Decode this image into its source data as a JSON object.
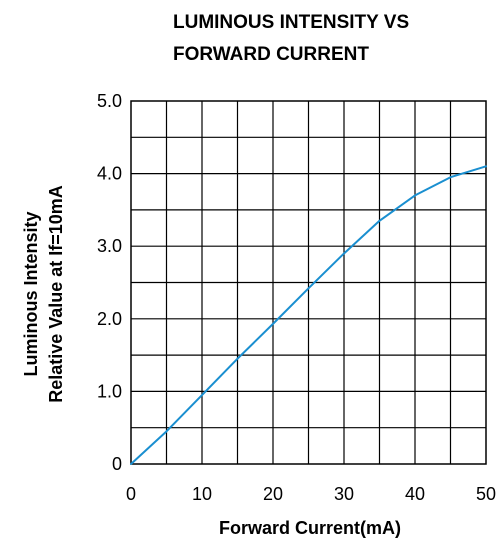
{
  "chart_data": {
    "type": "line",
    "title_lines": [
      "LUMINOUS INTENSITY  VS",
      "FORWARD CURRENT"
    ],
    "xlabel": "Forward Current(mA)",
    "ylabel_lines": [
      "Luminous Intensity",
      "Relative Value at If=10mA"
    ],
    "xlim": [
      0,
      50
    ],
    "ylim": [
      0,
      5
    ],
    "x_ticks": [
      0,
      10,
      20,
      30,
      40,
      50
    ],
    "x_tick_labels": [
      "0",
      "10",
      "20",
      "30",
      "40",
      "50"
    ],
    "y_ticks": [
      0,
      1,
      2,
      3,
      4,
      5
    ],
    "y_tick_labels": [
      "0",
      "1.0",
      "2.0",
      "3.0",
      "4.0",
      "5.0"
    ],
    "grid": true,
    "grid_x_step": 5,
    "grid_y_step": 0.5,
    "series": [
      {
        "color": "#1a8fd0",
        "x": [
          0,
          5,
          10,
          15,
          20,
          25,
          30,
          35,
          40,
          45,
          50
        ],
        "y": [
          0,
          0.45,
          0.95,
          1.45,
          1.93,
          2.42,
          2.9,
          3.35,
          3.7,
          3.95,
          4.1
        ]
      }
    ]
  }
}
